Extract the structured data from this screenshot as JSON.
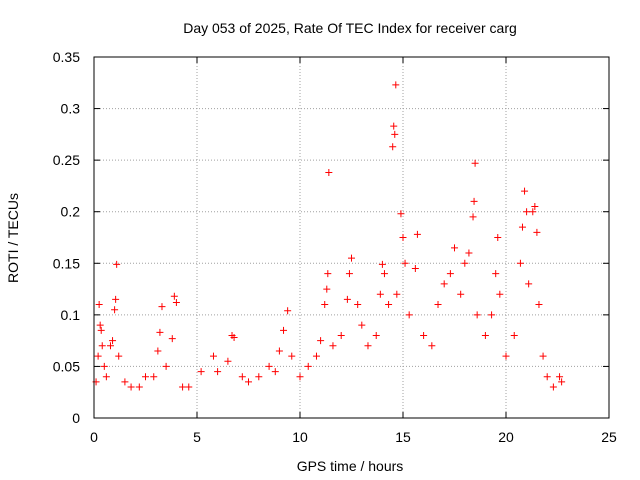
{
  "chart_data": {
    "type": "scatter",
    "title": "Day 053 of 2025, Rate Of TEC Index for receiver carg",
    "xlabel": "GPS time / hours",
    "ylabel": "ROTI / TECUs",
    "xlim": [
      0,
      25
    ],
    "ylim": [
      0,
      0.35
    ],
    "xticks": [
      "0",
      "5",
      "10",
      "15",
      "20",
      "25"
    ],
    "yticks": [
      "0",
      "0.05",
      "0.1",
      "0.15",
      "0.2",
      "0.25",
      "0.3",
      "0.35"
    ],
    "grid": true,
    "marker": "+",
    "color": "#ff0000",
    "series": [
      {
        "name": "ROTI",
        "points": [
          [
            0.1,
            0.035
          ],
          [
            0.2,
            0.06
          ],
          [
            0.25,
            0.11
          ],
          [
            0.3,
            0.09
          ],
          [
            0.35,
            0.085
          ],
          [
            0.4,
            0.07
          ],
          [
            0.5,
            0.05
          ],
          [
            0.6,
            0.04
          ],
          [
            0.8,
            0.07
          ],
          [
            0.9,
            0.075
          ],
          [
            1.0,
            0.105
          ],
          [
            1.05,
            0.115
          ],
          [
            1.1,
            0.149
          ],
          [
            1.2,
            0.06
          ],
          [
            1.5,
            0.035
          ],
          [
            1.8,
            0.03
          ],
          [
            2.2,
            0.03
          ],
          [
            2.5,
            0.04
          ],
          [
            2.9,
            0.04
          ],
          [
            3.1,
            0.065
          ],
          [
            3.2,
            0.083
          ],
          [
            3.3,
            0.108
          ],
          [
            3.5,
            0.05
          ],
          [
            3.8,
            0.077
          ],
          [
            3.9,
            0.118
          ],
          [
            4.0,
            0.112
          ],
          [
            4.3,
            0.03
          ],
          [
            4.6,
            0.03
          ],
          [
            5.2,
            0.045
          ],
          [
            5.8,
            0.06
          ],
          [
            6.0,
            0.045
          ],
          [
            6.5,
            0.055
          ],
          [
            6.7,
            0.08
          ],
          [
            6.8,
            0.078
          ],
          [
            7.2,
            0.04
          ],
          [
            7.5,
            0.035
          ],
          [
            8.0,
            0.04
          ],
          [
            8.5,
            0.05
          ],
          [
            8.8,
            0.045
          ],
          [
            9.0,
            0.065
          ],
          [
            9.2,
            0.085
          ],
          [
            9.4,
            0.104
          ],
          [
            9.6,
            0.06
          ],
          [
            10.0,
            0.04
          ],
          [
            10.4,
            0.05
          ],
          [
            10.8,
            0.06
          ],
          [
            11.0,
            0.075
          ],
          [
            11.2,
            0.11
          ],
          [
            11.3,
            0.125
          ],
          [
            11.35,
            0.14
          ],
          [
            11.4,
            0.238
          ],
          [
            11.6,
            0.07
          ],
          [
            12.0,
            0.08
          ],
          [
            12.3,
            0.115
          ],
          [
            12.4,
            0.14
          ],
          [
            12.5,
            0.155
          ],
          [
            12.8,
            0.11
          ],
          [
            13.0,
            0.09
          ],
          [
            13.3,
            0.07
          ],
          [
            13.7,
            0.08
          ],
          [
            13.9,
            0.12
          ],
          [
            14.0,
            0.149
          ],
          [
            14.1,
            0.14
          ],
          [
            14.3,
            0.11
          ],
          [
            14.5,
            0.263
          ],
          [
            14.55,
            0.283
          ],
          [
            14.6,
            0.275
          ],
          [
            14.65,
            0.323
          ],
          [
            14.7,
            0.12
          ],
          [
            14.9,
            0.198
          ],
          [
            15.0,
            0.175
          ],
          [
            15.1,
            0.15
          ],
          [
            15.3,
            0.1
          ],
          [
            15.6,
            0.145
          ],
          [
            15.7,
            0.178
          ],
          [
            16.0,
            0.08
          ],
          [
            16.4,
            0.07
          ],
          [
            16.7,
            0.11
          ],
          [
            17.0,
            0.13
          ],
          [
            17.3,
            0.14
          ],
          [
            17.5,
            0.165
          ],
          [
            17.8,
            0.12
          ],
          [
            18.0,
            0.15
          ],
          [
            18.2,
            0.16
          ],
          [
            18.4,
            0.195
          ],
          [
            18.45,
            0.21
          ],
          [
            18.5,
            0.247
          ],
          [
            18.6,
            0.1
          ],
          [
            19.0,
            0.08
          ],
          [
            19.3,
            0.1
          ],
          [
            19.5,
            0.14
          ],
          [
            19.6,
            0.175
          ],
          [
            19.7,
            0.12
          ],
          [
            20.0,
            0.06
          ],
          [
            20.4,
            0.08
          ],
          [
            20.7,
            0.15
          ],
          [
            20.8,
            0.185
          ],
          [
            20.9,
            0.22
          ],
          [
            21.0,
            0.2
          ],
          [
            21.1,
            0.13
          ],
          [
            21.3,
            0.2
          ],
          [
            21.4,
            0.205
          ],
          [
            21.5,
            0.18
          ],
          [
            21.6,
            0.11
          ],
          [
            21.8,
            0.06
          ],
          [
            22.0,
            0.04
          ],
          [
            22.3,
            0.03
          ],
          [
            22.6,
            0.04
          ],
          [
            22.7,
            0.035
          ]
        ]
      }
    ]
  }
}
